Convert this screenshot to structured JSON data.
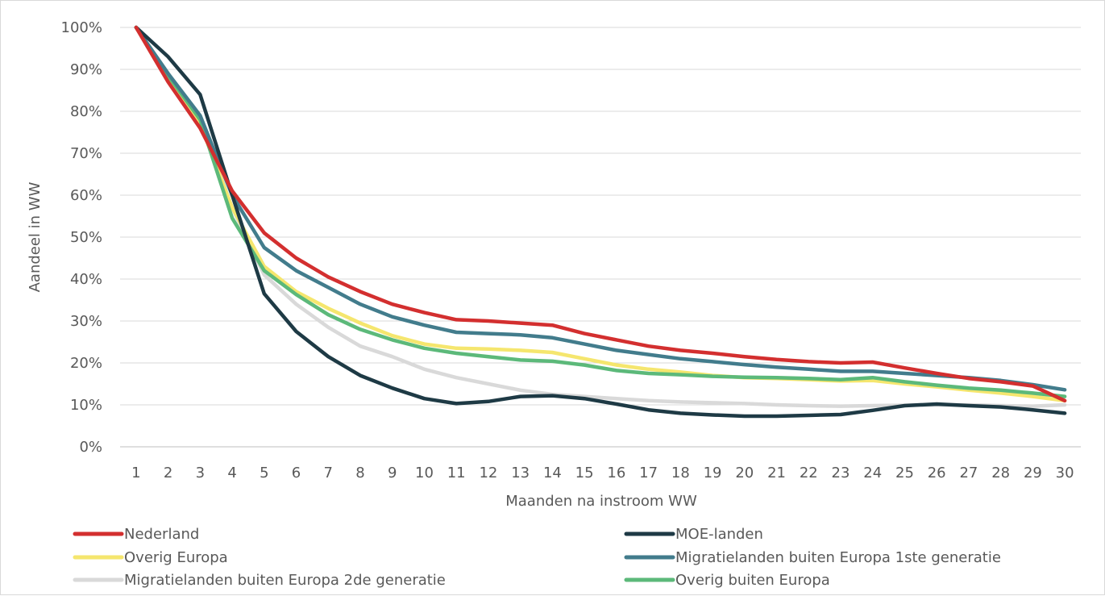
{
  "chart_data": {
    "type": "line",
    "title": "",
    "xlabel": "Maanden na instroom WW",
    "ylabel": "Aandeel in WW",
    "x": [
      1,
      2,
      3,
      4,
      5,
      6,
      7,
      8,
      9,
      10,
      11,
      12,
      13,
      14,
      15,
      16,
      17,
      18,
      19,
      20,
      21,
      22,
      23,
      24,
      25,
      26,
      27,
      28,
      29,
      30
    ],
    "x_tick_labels": [
      "1",
      "2",
      "3",
      "4",
      "5",
      "6",
      "7",
      "8",
      "9",
      "10",
      "11",
      "12",
      "13",
      "14",
      "15",
      "16",
      "17",
      "18",
      "19",
      "20",
      "21",
      "22",
      "23",
      "24",
      "25",
      "26",
      "27",
      "28",
      "29",
      "30"
    ],
    "y_tick_labels": [
      "0%",
      "10%",
      "20%",
      "30%",
      "40%",
      "50%",
      "60%",
      "70%",
      "80%",
      "90%",
      "100%"
    ],
    "ylim": [
      0,
      100
    ],
    "y_unit": "%",
    "grid": "horizontal",
    "legend_position": "bottom",
    "series": [
      {
        "name": "Nederland",
        "color": "#d32f2f",
        "values": [
          100,
          87,
          76,
          61,
          51,
          45,
          40.5,
          37,
          34,
          32,
          30.3,
          30,
          29.5,
          29,
          27,
          25.5,
          24,
          23,
          22.3,
          21.5,
          20.8,
          20.3,
          20,
          20.2,
          18.8,
          17.5,
          16.3,
          15.5,
          14.5,
          11
        ]
      },
      {
        "name": "MOE-landen",
        "color": "#1e3a45",
        "values": [
          100,
          93,
          84,
          60,
          36.5,
          27.5,
          21.5,
          17,
          14,
          11.5,
          10.3,
          10.8,
          12,
          12.2,
          11.5,
          10.2,
          8.8,
          8,
          7.6,
          7.3,
          7.3,
          7.5,
          7.7,
          8.7,
          9.8,
          10.2,
          9.8,
          9.5,
          8.8,
          8
        ]
      },
      {
        "name": "Overig Europa",
        "color": "#f5e66e",
        "values": [
          100,
          88,
          77,
          57,
          43,
          37,
          33,
          29.5,
          26.5,
          24.5,
          23.5,
          23.3,
          23,
          22.5,
          21,
          19.5,
          18.5,
          17.8,
          17,
          16.5,
          16.3,
          16,
          15.7,
          15.8,
          15,
          14.3,
          13.5,
          12.8,
          12,
          11
        ]
      },
      {
        "name": "Migratielanden buiten Europa 1ste generatie",
        "color": "#427c8c",
        "values": [
          100,
          89,
          79,
          60,
          47.5,
          42,
          38,
          34,
          31,
          29,
          27.3,
          27,
          26.7,
          26,
          24.5,
          23,
          22,
          21,
          20.3,
          19.6,
          19,
          18.5,
          18,
          18,
          17.5,
          17,
          16.5,
          15.8,
          14.8,
          13.6
        ]
      },
      {
        "name": "Migratielanden buiten Europa 2de generatie",
        "color": "#d9d9d9",
        "values": [
          100,
          89,
          78,
          57,
          41,
          34,
          28.5,
          24,
          21.5,
          18.5,
          16.5,
          15,
          13.5,
          12.5,
          12,
          11.5,
          11,
          10.7,
          10.5,
          10.3,
          10,
          9.8,
          9.7,
          9.8,
          9.9,
          10,
          10,
          9.8,
          9.7,
          10
        ]
      },
      {
        "name": "Overig buiten Europa",
        "color": "#5cb97a",
        "values": [
          100,
          88.5,
          78,
          54.5,
          42,
          36.3,
          31.5,
          28,
          25.5,
          23.5,
          22.3,
          21.5,
          20.7,
          20.4,
          19.5,
          18.2,
          17.5,
          17.2,
          16.8,
          16.6,
          16.5,
          16.3,
          16,
          16.5,
          15.5,
          14.7,
          14,
          13.5,
          12.8,
          12
        ]
      }
    ]
  }
}
